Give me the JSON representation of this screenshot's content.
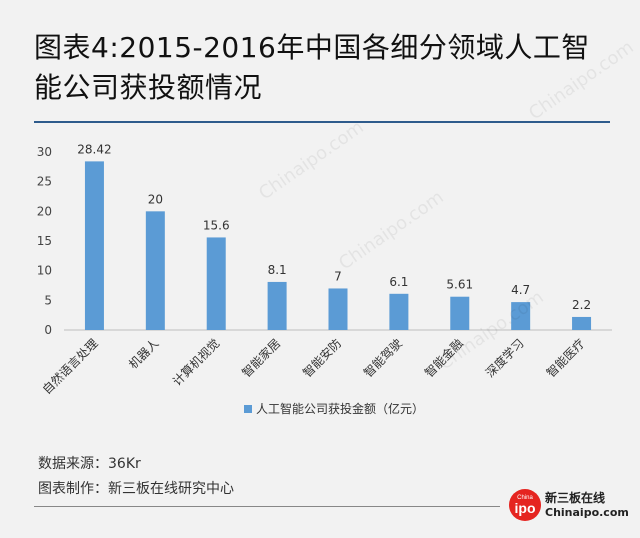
{
  "title": "图表4:2015-2016年中国各细分领域人工智能公司获投额情况",
  "source_label": "数据来源：36Kr",
  "maker_label": "图表制作：新三板在线研究中心",
  "brand": {
    "logo_text": "ipo",
    "logo_small": "China",
    "name_cn": "新三板在线",
    "name_en": "Chinaipo.com"
  },
  "watermark_text": "Chinaipo.com",
  "colors": {
    "bar": "#5b9bd5",
    "rule": "#2e5b8c",
    "logo": "#e52420"
  },
  "chart_data": {
    "type": "bar",
    "title": "图表4:2015-2016年中国各细分领域人工智能公司获投额情况",
    "categories": [
      "自然语言处理",
      "机器人",
      "计算机视觉",
      "智能家居",
      "智能安防",
      "智能驾驶",
      "智能金融",
      "深度学习",
      "智能医疗"
    ],
    "series": [
      {
        "name": "人工智能公司获投金额（亿元）",
        "values": [
          28.42,
          20,
          15.6,
          8.1,
          7,
          6.1,
          5.61,
          4.7,
          2.2
        ]
      }
    ],
    "data_labels": [
      "28.42",
      "20",
      "15.6",
      "8.1",
      "7",
      "6.1",
      "5.61",
      "4.7",
      "2.2"
    ],
    "ylim": [
      0,
      30
    ],
    "yticks": [
      0,
      5,
      10,
      15,
      20,
      25,
      30
    ],
    "grid": false,
    "legend_position": "bottom"
  }
}
